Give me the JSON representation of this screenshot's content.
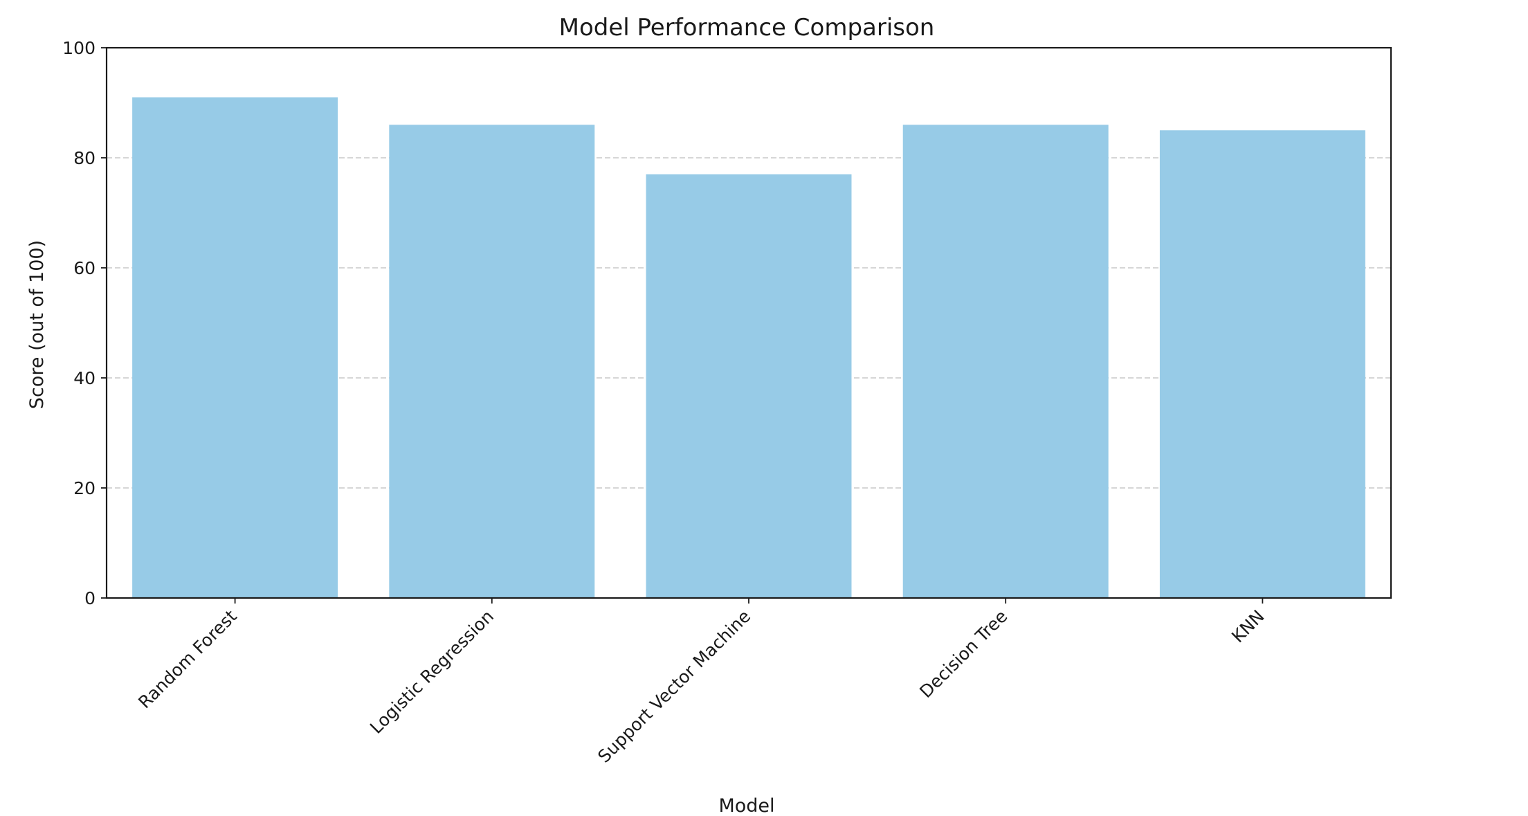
{
  "chart_data": {
    "type": "bar",
    "title": "Model Performance Comparison",
    "xlabel": "Model",
    "ylabel": "Score (out of 100)",
    "categories": [
      "Random Forest",
      "Logistic Regression",
      "Support Vector Machine",
      "Decision Tree",
      "KNN"
    ],
    "values": [
      91,
      86,
      77,
      86,
      85
    ],
    "ylim": [
      0,
      100
    ],
    "yticks": [
      0,
      20,
      40,
      60,
      80,
      100
    ],
    "grid": "y-dashed",
    "legend": "none",
    "bar_color": "#97cbe7",
    "grid_color": "#c8c8c8",
    "axis_color": "#1a1a1a"
  }
}
